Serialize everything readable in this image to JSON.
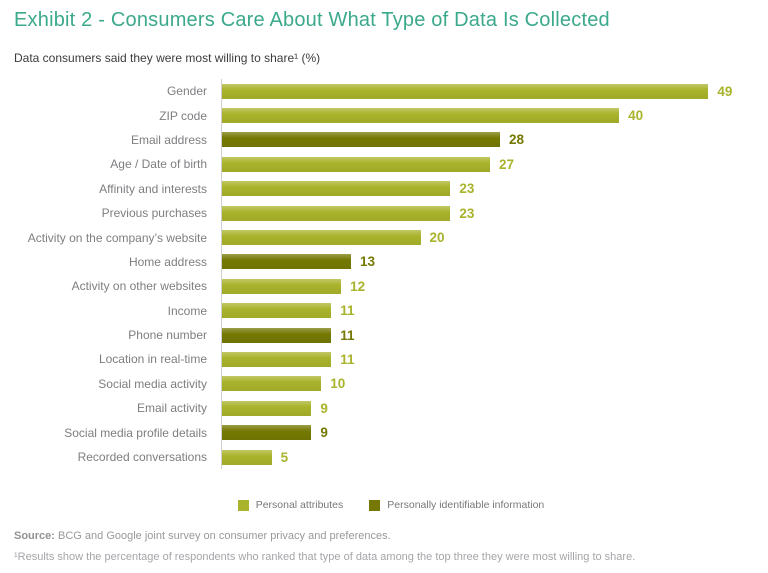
{
  "title": "Exhibit 2 - Consumers Care About What Type of Data Is Collected",
  "subtitle": "Data consumers said they were most willing to share¹ (%)",
  "colors": {
    "title": "#3BA98C",
    "light_bar": "#A9B32B",
    "dark_bar": "#757903",
    "category_label": "#7D7E81",
    "axis_line": "#CFCFCF",
    "footer_text": "#98999C"
  },
  "chart_data": {
    "type": "bar",
    "orientation": "horizontal",
    "title": "Exhibit 2 - Consumers Care About What Type of Data Is Collected",
    "subtitle": "Data consumers said they were most willing to share¹ (%)",
    "xlabel": "",
    "ylabel": "",
    "xlim": [
      0,
      55
    ],
    "grid": false,
    "legend_position": "bottom-center",
    "value_labels": "end-of-bar",
    "bars": [
      {
        "label": "Gender",
        "value": 49,
        "group": "personal"
      },
      {
        "label": "ZIP code",
        "value": 40,
        "group": "personal"
      },
      {
        "label": "Email address",
        "value": 28,
        "group": "pii"
      },
      {
        "label": "Age / Date of birth",
        "value": 27,
        "group": "personal"
      },
      {
        "label": "Affinity and interests",
        "value": 23,
        "group": "personal"
      },
      {
        "label": "Previous purchases",
        "value": 23,
        "group": "personal"
      },
      {
        "label": "Activity on the company’s website",
        "value": 20,
        "group": "personal"
      },
      {
        "label": "Home address",
        "value": 13,
        "group": "pii"
      },
      {
        "label": "Activity on other websites",
        "value": 12,
        "group": "personal"
      },
      {
        "label": "Income",
        "value": 11,
        "group": "personal"
      },
      {
        "label": "Phone number",
        "value": 11,
        "group": "pii"
      },
      {
        "label": "Location in real-time",
        "value": 11,
        "group": "personal"
      },
      {
        "label": "Social media activity",
        "value": 10,
        "group": "personal"
      },
      {
        "label": "Email activity",
        "value": 9,
        "group": "personal"
      },
      {
        "label": "Social media profile details",
        "value": 9,
        "group": "pii"
      },
      {
        "label": "Recorded conversations",
        "value": 5,
        "group": "personal"
      }
    ],
    "groups": {
      "personal": {
        "label": "Personal attributes",
        "color": "#A9B32B"
      },
      "pii": {
        "label": "Personally identifiable information",
        "color": "#757903"
      }
    }
  },
  "legend": [
    {
      "label": "Personal attributes",
      "group": "personal"
    },
    {
      "label": "Personally identifiable information",
      "group": "pii"
    }
  ],
  "footer": {
    "source_label": "Source:",
    "source_text": " BCG and Google joint survey on consumer privacy and preferences.",
    "footnote": "¹Results show the percentage of respondents who ranked that type of data among the top three they were most willing to share."
  }
}
